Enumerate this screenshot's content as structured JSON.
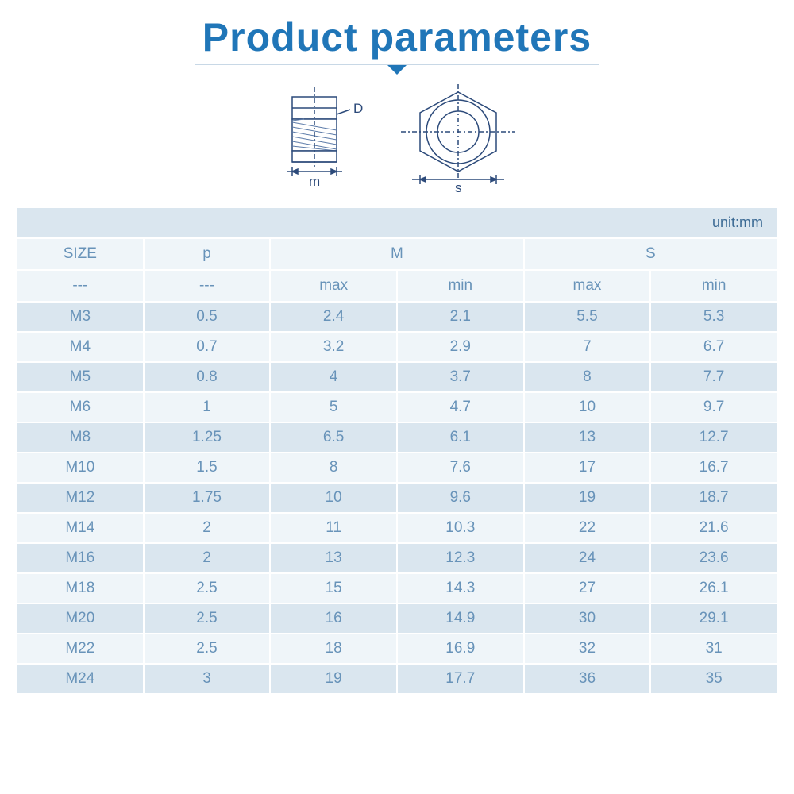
{
  "title": "Product parameters",
  "unit_label": "unit:mm",
  "diagram": {
    "side_label": "D",
    "width_label": "m",
    "span_label": "s",
    "stroke": "#2c4a7a",
    "hatch": "#5b7aa8"
  },
  "table": {
    "type": "table",
    "columns_top": [
      "SIZE",
      "p",
      "M",
      "S"
    ],
    "columns_sub": [
      "---",
      "---",
      "max",
      "min",
      "max",
      "min"
    ],
    "rows": [
      [
        "M3",
        "0.5",
        "2.4",
        "2.1",
        "5.5",
        "5.3"
      ],
      [
        "M4",
        "0.7",
        "3.2",
        "2.9",
        "7",
        "6.7"
      ],
      [
        "M5",
        "0.8",
        "4",
        "3.7",
        "8",
        "7.7"
      ],
      [
        "M6",
        "1",
        "5",
        "4.7",
        "10",
        "9.7"
      ],
      [
        "M8",
        "1.25",
        "6.5",
        "6.1",
        "13",
        "12.7"
      ],
      [
        "M10",
        "1.5",
        "8",
        "7.6",
        "17",
        "16.7"
      ],
      [
        "M12",
        "1.75",
        "10",
        "9.6",
        "19",
        "18.7"
      ],
      [
        "M14",
        "2",
        "11",
        "10.3",
        "22",
        "21.6"
      ],
      [
        "M16",
        "2",
        "13",
        "12.3",
        "24",
        "23.6"
      ],
      [
        "M18",
        "2.5",
        "15",
        "14.3",
        "27",
        "26.1"
      ],
      [
        "M20",
        "2.5",
        "16",
        "14.9",
        "30",
        "29.1"
      ],
      [
        "M22",
        "2.5",
        "18",
        "16.9",
        "32",
        "31"
      ],
      [
        "M24",
        "3",
        "19",
        "17.7",
        "36",
        "35"
      ]
    ],
    "header_bg": "#eff5f9",
    "row_odd_bg": "#dae6ef",
    "row_even_bg": "#eff5f9",
    "text_color": "#6893b9",
    "title_color": "#2076b8",
    "font_family": "Arial",
    "title_fontsize": 50,
    "cell_fontsize": 19
  }
}
